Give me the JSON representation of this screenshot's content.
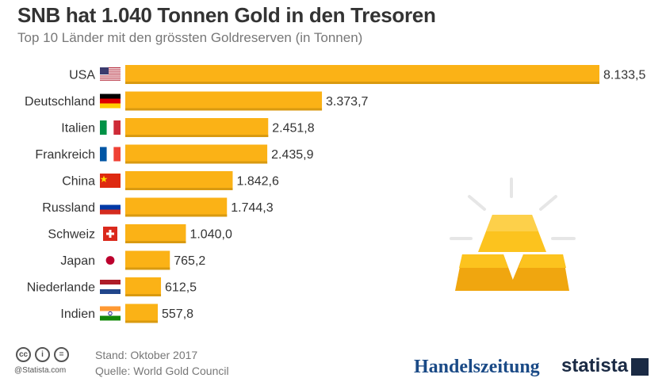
{
  "header": {
    "title": "SNB hat 1.040 Tonnen Gold in den Tresoren",
    "subtitle": "Top 10 Länder mit den grössten Goldreserven (in Tonnen)"
  },
  "chart_data": {
    "type": "bar",
    "orientation": "horizontal",
    "categories": [
      "USA",
      "Deutschland",
      "Italien",
      "Frankreich",
      "China",
      "Russland",
      "Schweiz",
      "Japan",
      "Niederlande",
      "Indien"
    ],
    "values": [
      8133.5,
      3373.7,
      2451.8,
      2435.9,
      1842.6,
      1744.3,
      1040.0,
      765.2,
      612.5,
      557.8
    ],
    "value_labels": [
      "8.133,5",
      "3.373,7",
      "2.451,8",
      "2.435,9",
      "1.842,6",
      "1.744,3",
      "1.040,0",
      "765,2",
      "612,5",
      "557,8"
    ],
    "flags": [
      "us-flag",
      "germany-flag",
      "italy-flag",
      "france-flag",
      "china-flag",
      "russia-flag",
      "switzerland-flag",
      "japan-flag",
      "netherlands-flag",
      "india-flag"
    ],
    "title": "SNB hat 1.040 Tonnen Gold in den Tresoren",
    "subtitle": "Top 10 Länder mit den grössten Goldreserven (in Tonnen)",
    "xlim": [
      0,
      8133.5
    ],
    "grid": false,
    "legend": "none"
  },
  "colors": {
    "bar": "#fbb216",
    "bar_shadow": "#d99a10",
    "gold_light": "#fcc31e",
    "gold_dark": "#f0a60f",
    "sparkle": "#e6e6e6"
  },
  "icons": [
    "gold-bars-icon",
    "cc-icon",
    "by-icon",
    "equals-icon"
  ],
  "footer": {
    "cc_glyphs": [
      "cc",
      "i",
      "="
    ],
    "credit": "@Statista.com",
    "stand": "Stand: Oktober 2017",
    "quelle": "Quelle: World Gold Council",
    "brand_handelszeitung": "Handelszeitung",
    "brand_statista": "statista"
  }
}
